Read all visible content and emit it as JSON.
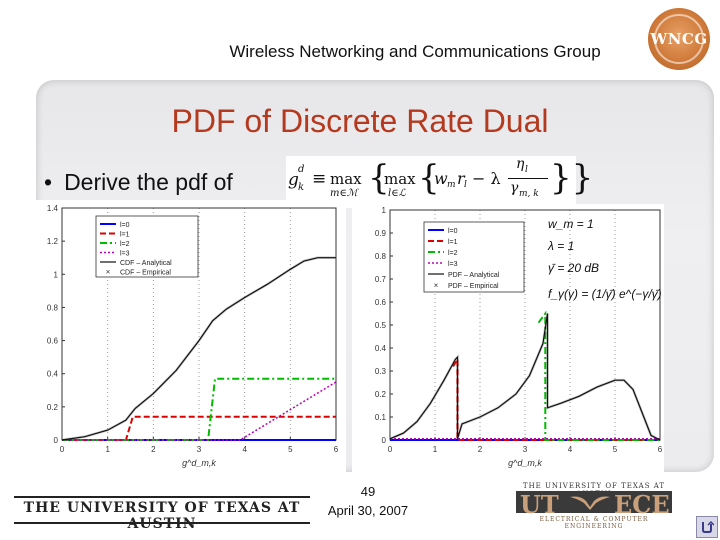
{
  "header": {
    "title": "Wireless Networking and Communications Group"
  },
  "logo": {
    "text": "WNCG"
  },
  "slide": {
    "title": "PDF of Discrete Rate Dual",
    "bullet": "Derive the pdf of",
    "formula": {
      "lhs": "g",
      "lhs_sup": "d",
      "lhs_sub": "k",
      "equiv": "≡",
      "max1": "max",
      "max1_sub": "m∈ℳ",
      "max2": "max",
      "max2_sub": "l∈ℒ",
      "term": "w",
      "term_sub": "m",
      "term_r": "r",
      "term_r_sub": "l",
      "minus": "− λ",
      "frac_num": "η",
      "frac_num_sub": "l",
      "frac_den": "γ",
      "frac_den_sub": "m, k"
    }
  },
  "params": {
    "wm": "w_m = 1",
    "lambda": "λ = 1",
    "gamma": "γ̄ = 20 dB",
    "pdf": "f_γ(γ) = (1/γ̄) e^(−γ/γ̄)"
  },
  "colors": {
    "l0": "#0000ff",
    "l1": "#dd0000",
    "l2": "#00bb00",
    "l3": "#bb00bb",
    "cdf_analytical": "#111111",
    "cdf_empirical": "#888888",
    "title": "#b5391f"
  },
  "chart_data": [
    {
      "type": "line",
      "title": "",
      "xlabel": "g^d_m,k",
      "ylabel": "",
      "xlim": [
        0,
        6
      ],
      "ylim": [
        0,
        1.4
      ],
      "xticks": [
        "0",
        "1",
        "2",
        "3",
        "4",
        "5",
        "6"
      ],
      "yticks": [
        "0",
        "0.2",
        "0.4",
        "0.6",
        "0.8",
        "1",
        "1.2",
        "1.4"
      ],
      "grid": "vertical dotted",
      "legend": [
        "l=0",
        "l=1",
        "l=2",
        "l=3",
        "CDF – Analytical",
        "CDF – Empirical"
      ],
      "legend_position": "top-left",
      "series": [
        {
          "name": "l=0",
          "x": [
            0,
            6
          ],
          "y": [
            0,
            0
          ]
        },
        {
          "name": "l=1",
          "x": [
            0,
            1.4,
            1.55,
            6
          ],
          "y": [
            0,
            0,
            0.14,
            0.14
          ]
        },
        {
          "name": "l=2",
          "x": [
            0,
            3.2,
            3.35,
            6
          ],
          "y": [
            0,
            0,
            0.37,
            0.37
          ]
        },
        {
          "name": "l=3",
          "x": [
            0,
            3.9,
            6
          ],
          "y": [
            0,
            0,
            0.35
          ]
        },
        {
          "name": "CDF – Analytical",
          "x": [
            0,
            0.5,
            1,
            1.4,
            1.6,
            2,
            2.5,
            3,
            3.3,
            3.6,
            4,
            4.5,
            5,
            5.3,
            5.6,
            6
          ],
          "y": [
            0,
            0.02,
            0.06,
            0.12,
            0.19,
            0.28,
            0.42,
            0.6,
            0.72,
            0.79,
            0.86,
            0.94,
            1.03,
            1.08,
            1.1,
            1.1
          ]
        },
        {
          "name": "CDF – Empirical",
          "x": [
            0,
            0.5,
            1,
            1.4,
            1.6,
            2,
            2.5,
            3,
            3.3,
            3.6,
            4,
            4.5,
            5,
            5.3,
            5.6,
            6
          ],
          "y": [
            0,
            0.02,
            0.06,
            0.12,
            0.19,
            0.28,
            0.42,
            0.6,
            0.72,
            0.79,
            0.86,
            0.94,
            1.03,
            1.08,
            1.1,
            1.1
          ]
        }
      ]
    },
    {
      "type": "line",
      "title": "",
      "xlabel": "g^d_m,k",
      "ylabel": "",
      "xlim": [
        0,
        6
      ],
      "ylim": [
        0,
        1
      ],
      "xticks": [
        "0",
        "1",
        "2",
        "3",
        "4",
        "5",
        "6"
      ],
      "yticks": [
        "0",
        "0.1",
        "0.2",
        "0.3",
        "0.4",
        "0.5",
        "0.6",
        "0.7",
        "0.8",
        "0.9",
        "1"
      ],
      "grid": "vertical dotted",
      "legend": [
        "l=0",
        "l=1",
        "l=2",
        "l=3",
        "PDF – Analytical",
        "PDF – Empirical"
      ],
      "legend_position": "top-left",
      "series": [
        {
          "name": "l=0",
          "x": [
            0,
            6
          ],
          "y": [
            0,
            0
          ]
        },
        {
          "name": "l=1",
          "x": [
            1.4,
            1.5,
            1.5,
            6
          ],
          "y": [
            0.32,
            0.35,
            0,
            0
          ]
        },
        {
          "name": "l=2",
          "x": [
            3.3,
            3.45,
            3.45,
            6
          ],
          "y": [
            0.51,
            0.55,
            0,
            0
          ]
        },
        {
          "name": "l=3",
          "x": [
            0,
            6
          ],
          "y": [
            0.005,
            0.005
          ]
        },
        {
          "name": "PDF – Analytical",
          "x": [
            0,
            0.3,
            0.6,
            0.9,
            1.2,
            1.45,
            1.5,
            1.5,
            1.6,
            2,
            2.4,
            2.8,
            3.1,
            3.4,
            3.5,
            3.5,
            3.8,
            4.2,
            4.6,
            5.0,
            5.2,
            5.4,
            5.6,
            5.8,
            6
          ],
          "y": [
            0.005,
            0.03,
            0.08,
            0.16,
            0.26,
            0.35,
            0.36,
            0.005,
            0.07,
            0.1,
            0.14,
            0.2,
            0.28,
            0.42,
            0.55,
            0.14,
            0.16,
            0.19,
            0.23,
            0.26,
            0.26,
            0.22,
            0.12,
            0.02,
            0.0
          ]
        },
        {
          "name": "PDF – Empirical",
          "x": [
            0,
            0.3,
            0.6,
            0.9,
            1.2,
            1.45,
            1.5,
            1.5,
            1.6,
            2,
            2.4,
            2.8,
            3.1,
            3.4,
            3.5,
            3.5,
            3.8,
            4.2,
            4.6,
            5.0,
            5.2,
            5.4,
            5.6,
            5.8,
            6
          ],
          "y": [
            0.005,
            0.03,
            0.08,
            0.16,
            0.26,
            0.35,
            0.36,
            0.005,
            0.07,
            0.1,
            0.14,
            0.2,
            0.28,
            0.42,
            0.55,
            0.14,
            0.16,
            0.19,
            0.23,
            0.26,
            0.26,
            0.22,
            0.12,
            0.02,
            0.0
          ]
        }
      ]
    }
  ],
  "footer": {
    "university": "THE UNIVERSITY OF TEXAS AT AUSTIN",
    "page": "49",
    "date": "April 30, 2007",
    "ece_top": "THE UNIVERSITY OF TEXAS AT AUSTIN",
    "ece_ut": "UT",
    "ece_ece": "ECE",
    "ece_bottom": "ELECTRICAL & COMPUTER ENGINEERING"
  }
}
